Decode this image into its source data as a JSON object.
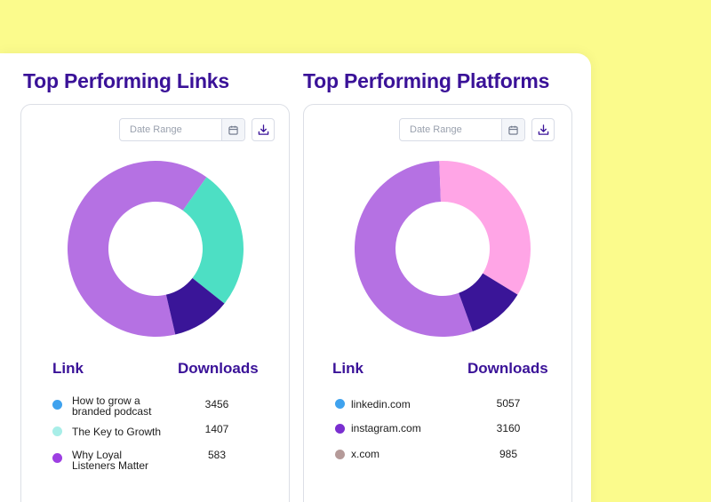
{
  "links": {
    "title": "Top Performing Links",
    "date_range_placeholder": "Date Range",
    "col_label": "Link",
    "col_value": "Downloads",
    "rows": [
      {
        "label_line1": "How to grow a",
        "label_line2": "branded podcast",
        "value": "3456",
        "color": "#3fa2ee"
      },
      {
        "label_line1": "The Key to Growth",
        "label_line2": "",
        "value": "1407",
        "color": "#a8eee8"
      },
      {
        "label_line1": "Why Loyal",
        "label_line2": "Listeners Matter",
        "value": "583",
        "color": "#9d3fe2"
      }
    ]
  },
  "platforms": {
    "title": "Top Performing Platforms",
    "date_range_placeholder": "Date Range",
    "col_label": "Link",
    "col_value": "Downloads",
    "rows": [
      {
        "label_line1": "linkedin.com",
        "label_line2": "",
        "value": "5057",
        "color": "#3fa2ee"
      },
      {
        "label_line1": "instagram.com",
        "label_line2": "",
        "value": "3160",
        "color": "#7a2fd0"
      },
      {
        "label_line1": "x.com",
        "label_line2": "",
        "value": "985",
        "color": "#b59a99"
      }
    ]
  },
  "chart_data": [
    {
      "type": "pie",
      "categories": [
        "How to grow a branded podcast",
        "The Key to Growth",
        "Why Loyal Listeners Matter"
      ],
      "values": [
        3456,
        1407,
        583
      ],
      "colors": [
        "#b571e3",
        "#4ddfc4",
        "#3a1598"
      ]
    },
    {
      "type": "pie",
      "categories": [
        "linkedin.com",
        "instagram.com",
        "x.com"
      ],
      "values": [
        5057,
        3160,
        985
      ],
      "colors": [
        "#b571e3",
        "#ffa5e6",
        "#3a1598"
      ]
    }
  ]
}
